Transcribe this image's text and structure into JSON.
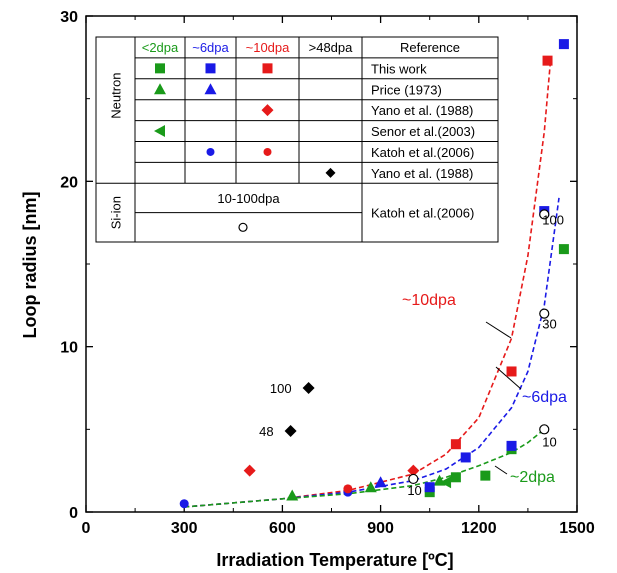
{
  "chart_data": {
    "type": "scatter",
    "xlabel": "Irradiation Temperature [ºC]",
    "ylabel": "Loop radius [nm]",
    "xlim": [
      0,
      1500
    ],
    "ylim": [
      0,
      30
    ],
    "x_ticks": [
      "0",
      "300",
      "600",
      "900",
      "1200",
      "1500"
    ],
    "y_ticks": [
      "0",
      "10",
      "20",
      "30"
    ],
    "colors": {
      "lt2dpa": "#1a9a1a",
      "dpa6": "#1a1ae6",
      "dpa10": "#e61a1a",
      "gt48dpa": "#000000",
      "si": "#000000"
    },
    "legend_table": {
      "headers": [
        "<2dpa",
        "~6dpa",
        "~10dpa",
        ">48dpa",
        "Reference"
      ],
      "neutron_label": "Neutron",
      "si_label": "Si-ion",
      "si_dose_label": "10-100dpa",
      "rows": [
        {
          "reference": "This work",
          "markers": [
            "square",
            "square",
            "square",
            ""
          ]
        },
        {
          "reference": "Price (1973)",
          "markers": [
            "triangle",
            "triangle",
            "",
            ""
          ]
        },
        {
          "reference": "Yano et al. (1988)",
          "markers": [
            "",
            "",
            "diamond",
            ""
          ]
        },
        {
          "reference": "Senor et al.(2003)",
          "markers": [
            "triangle-left",
            "",
            "",
            ""
          ]
        },
        {
          "reference": "Katoh et al.(2006)",
          "markers": [
            "",
            "circle",
            "circle",
            ""
          ]
        },
        {
          "reference": "Yano et al. (1988)",
          "markers": [
            "",
            "",
            "",
            "diamond"
          ]
        }
      ],
      "si_reference": "Katoh et al.(2006)"
    },
    "series": [
      {
        "group": "lt2dpa",
        "marker": "square",
        "points": [
          [
            1050,
            1.2
          ],
          [
            1130,
            2.1
          ],
          [
            1220,
            2.2
          ],
          [
            1300,
            3.8
          ],
          [
            1460,
            15.9
          ]
        ]
      },
      {
        "group": "lt2dpa",
        "marker": "triangle",
        "points": [
          [
            630,
            1.0
          ],
          [
            870,
            1.5
          ],
          [
            1080,
            1.9
          ]
        ]
      },
      {
        "group": "lt2dpa",
        "marker": "triangle-left",
        "points": [
          [
            1100,
            1.8
          ]
        ]
      },
      {
        "group": "dpa6",
        "marker": "square",
        "points": [
          [
            1050,
            1.5
          ],
          [
            1160,
            3.3
          ],
          [
            1300,
            4.0
          ],
          [
            1400,
            18.2
          ],
          [
            1460,
            28.3
          ]
        ]
      },
      {
        "group": "dpa6",
        "marker": "triangle",
        "points": [
          [
            900,
            1.8
          ]
        ]
      },
      {
        "group": "dpa6",
        "marker": "circle",
        "points": [
          [
            300,
            0.5
          ],
          [
            800,
            1.2
          ]
        ]
      },
      {
        "group": "dpa10",
        "marker": "square",
        "points": [
          [
            1130,
            4.1
          ],
          [
            1300,
            8.5
          ],
          [
            1410,
            27.3
          ]
        ]
      },
      {
        "group": "dpa10",
        "marker": "diamond",
        "points": [
          [
            500,
            2.5
          ],
          [
            1000,
            2.5
          ]
        ]
      },
      {
        "group": "dpa10",
        "marker": "circle",
        "points": [
          [
            800,
            1.4
          ]
        ]
      },
      {
        "group": "gt48dpa",
        "marker": "diamond",
        "points": [
          [
            625,
            4.9
          ],
          [
            680,
            7.5
          ]
        ]
      },
      {
        "group": "si",
        "marker": "open-circle",
        "points": [
          [
            1000,
            2.0
          ],
          [
            1400,
            5.0
          ],
          [
            1400,
            12.0
          ],
          [
            1400,
            18.0
          ]
        ]
      }
    ],
    "si_point_labels": [
      {
        "text": "10",
        "x": 1000,
        "y": 2.0
      },
      {
        "text": "10",
        "x": 1400,
        "y": 5.0
      },
      {
        "text": "30",
        "x": 1400,
        "y": 12.0
      },
      {
        "text": "100",
        "x": 1400,
        "y": 18.0
      }
    ],
    "diamond_labels": [
      {
        "text": "48",
        "x": 625,
        "y": 4.9
      },
      {
        "text": "100",
        "x": 680,
        "y": 7.5
      }
    ],
    "trend_lines": [
      {
        "group": "dpa10",
        "label": "~10dpa",
        "x": [
          300,
          600,
          800,
          1000,
          1100,
          1200,
          1300,
          1350,
          1400,
          1420
        ],
        "y": [
          0.3,
          0.8,
          1.3,
          2.3,
          3.5,
          5.7,
          10.5,
          15.5,
          23.0,
          27.5
        ]
      },
      {
        "group": "dpa6",
        "label": "~6dpa",
        "x": [
          300,
          600,
          800,
          1000,
          1100,
          1200,
          1300,
          1350,
          1400,
          1445
        ],
        "y": [
          0.3,
          0.8,
          1.2,
          1.9,
          2.6,
          3.9,
          6.3,
          8.5,
          12.5,
          19.0
        ]
      },
      {
        "group": "lt2dpa",
        "label": "~2dpa",
        "x": [
          300,
          600,
          800,
          1000,
          1100,
          1200,
          1300,
          1350,
          1400
        ],
        "y": [
          0.3,
          0.8,
          1.1,
          1.6,
          2.1,
          2.8,
          3.6,
          4.2,
          5.0
        ]
      }
    ]
  }
}
